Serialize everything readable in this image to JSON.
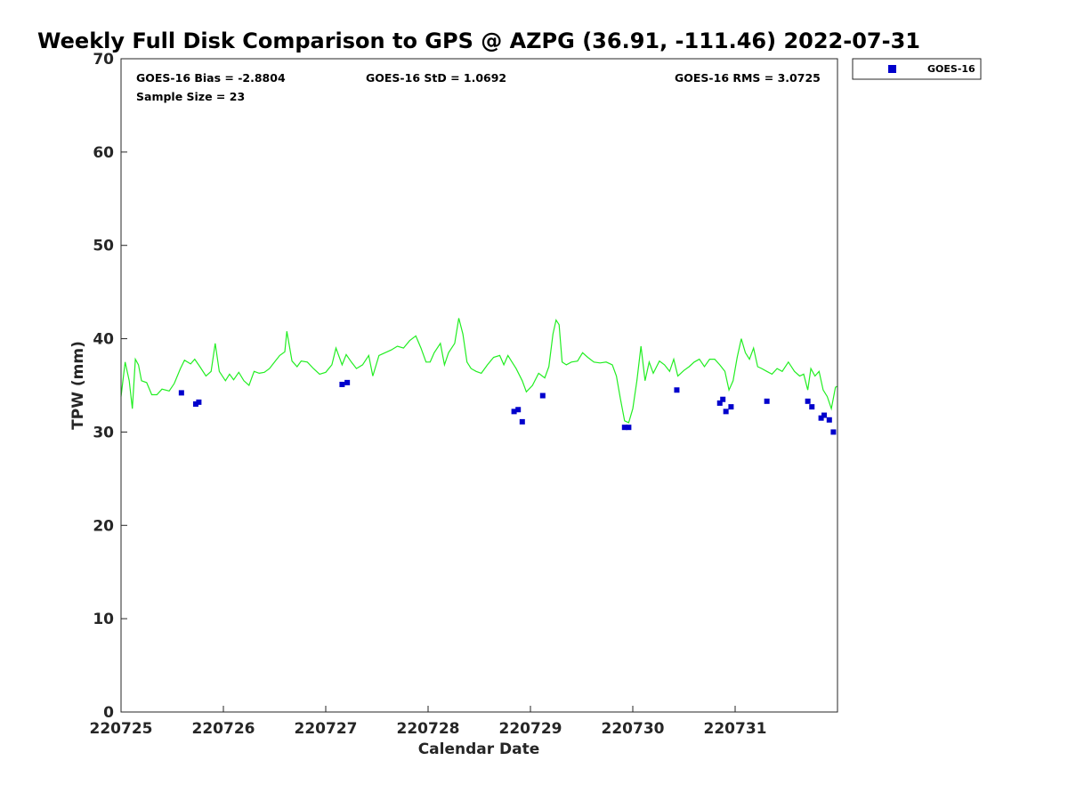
{
  "chart_data": {
    "type": "scatter",
    "title": "Weekly Full Disk Comparison to GPS @ AZPG (36.91, -111.46) 2022-07-31",
    "xlabel": "Calendar Date",
    "ylabel": "TPW (mm)",
    "xlim": [
      0,
      7
    ],
    "ylim": [
      0,
      70
    ],
    "yticks": [
      0,
      10,
      20,
      30,
      40,
      50,
      60,
      70
    ],
    "xticks": [
      {
        "value": 0,
        "label": "220725"
      },
      {
        "value": 1,
        "label": "220726"
      },
      {
        "value": 2,
        "label": "220727"
      },
      {
        "value": 3,
        "label": "220728"
      },
      {
        "value": 4,
        "label": "220729"
      },
      {
        "value": 5,
        "label": "220730"
      },
      {
        "value": 6,
        "label": "220731"
      }
    ],
    "grid": false,
    "legend_position": "outside top-right",
    "stats": {
      "bias": "GOES-16 Bias = -2.8804",
      "std": "GOES-16 StD = 1.0692",
      "rms": "GOES-16 RMS = 3.0725",
      "sample": "Sample Size = 23"
    },
    "series": [
      {
        "name": "GOES-16",
        "kind": "scatter",
        "color": "#0000cc",
        "marker": "square",
        "points": [
          [
            0.59,
            34.2
          ],
          [
            0.73,
            33.0
          ],
          [
            0.76,
            33.2
          ],
          [
            2.16,
            35.1
          ],
          [
            2.21,
            35.3
          ],
          [
            3.84,
            32.2
          ],
          [
            3.88,
            32.4
          ],
          [
            3.92,
            31.1
          ],
          [
            4.12,
            33.9
          ],
          [
            4.92,
            30.5
          ],
          [
            4.96,
            30.5
          ],
          [
            5.43,
            34.5
          ],
          [
            5.85,
            33.1
          ],
          [
            5.88,
            33.5
          ],
          [
            5.91,
            32.2
          ],
          [
            5.96,
            32.7
          ],
          [
            6.31,
            33.3
          ],
          [
            6.71,
            33.3
          ],
          [
            6.75,
            32.7
          ],
          [
            6.84,
            31.5
          ],
          [
            6.87,
            31.8
          ],
          [
            6.92,
            31.3
          ],
          [
            6.96,
            30.0
          ]
        ]
      },
      {
        "kind": "line",
        "color": "#22ee22",
        "points": [
          [
            0.0,
            33.8
          ],
          [
            0.04,
            37.5
          ],
          [
            0.08,
            35.5
          ],
          [
            0.11,
            32.5
          ],
          [
            0.14,
            37.8
          ],
          [
            0.17,
            37.2
          ],
          [
            0.2,
            35.5
          ],
          [
            0.25,
            35.3
          ],
          [
            0.3,
            34.0
          ],
          [
            0.35,
            34.0
          ],
          [
            0.4,
            34.6
          ],
          [
            0.47,
            34.4
          ],
          [
            0.52,
            35.2
          ],
          [
            0.58,
            36.8
          ],
          [
            0.62,
            37.7
          ],
          [
            0.68,
            37.3
          ],
          [
            0.72,
            37.8
          ],
          [
            0.77,
            37.0
          ],
          [
            0.83,
            36.0
          ],
          [
            0.88,
            36.5
          ],
          [
            0.92,
            39.5
          ],
          [
            0.96,
            36.5
          ],
          [
            1.02,
            35.5
          ],
          [
            1.06,
            36.2
          ],
          [
            1.1,
            35.6
          ],
          [
            1.15,
            36.4
          ],
          [
            1.2,
            35.5
          ],
          [
            1.25,
            35.0
          ],
          [
            1.3,
            36.5
          ],
          [
            1.35,
            36.3
          ],
          [
            1.4,
            36.4
          ],
          [
            1.45,
            36.8
          ],
          [
            1.5,
            37.5
          ],
          [
            1.55,
            38.2
          ],
          [
            1.6,
            38.6
          ],
          [
            1.62,
            40.8
          ],
          [
            1.67,
            37.6
          ],
          [
            1.72,
            37.0
          ],
          [
            1.76,
            37.6
          ],
          [
            1.82,
            37.5
          ],
          [
            1.88,
            36.8
          ],
          [
            1.94,
            36.2
          ],
          [
            2.0,
            36.4
          ],
          [
            2.06,
            37.2
          ],
          [
            2.1,
            39.0
          ],
          [
            2.16,
            37.2
          ],
          [
            2.2,
            38.3
          ],
          [
            2.25,
            37.5
          ],
          [
            2.3,
            36.8
          ],
          [
            2.36,
            37.2
          ],
          [
            2.42,
            38.2
          ],
          [
            2.46,
            36.0
          ],
          [
            2.52,
            38.2
          ],
          [
            2.58,
            38.5
          ],
          [
            2.64,
            38.8
          ],
          [
            2.7,
            39.2
          ],
          [
            2.76,
            39.0
          ],
          [
            2.82,
            39.8
          ],
          [
            2.88,
            40.3
          ],
          [
            2.93,
            39.0
          ],
          [
            2.98,
            37.5
          ],
          [
            3.02,
            37.5
          ],
          [
            3.06,
            38.5
          ],
          [
            3.12,
            39.5
          ],
          [
            3.16,
            37.2
          ],
          [
            3.2,
            38.5
          ],
          [
            3.26,
            39.5
          ],
          [
            3.3,
            42.2
          ],
          [
            3.34,
            40.5
          ],
          [
            3.38,
            37.5
          ],
          [
            3.42,
            36.8
          ],
          [
            3.47,
            36.5
          ],
          [
            3.52,
            36.3
          ],
          [
            3.58,
            37.2
          ],
          [
            3.64,
            38.0
          ],
          [
            3.7,
            38.2
          ],
          [
            3.74,
            37.2
          ],
          [
            3.78,
            38.2
          ],
          [
            3.82,
            37.5
          ],
          [
            3.86,
            36.8
          ],
          [
            3.92,
            35.5
          ],
          [
            3.96,
            34.3
          ],
          [
            4.02,
            35.0
          ],
          [
            4.08,
            36.3
          ],
          [
            4.14,
            35.8
          ],
          [
            4.18,
            37.0
          ],
          [
            4.22,
            40.5
          ],
          [
            4.25,
            42.0
          ],
          [
            4.28,
            41.5
          ],
          [
            4.31,
            37.5
          ],
          [
            4.35,
            37.2
          ],
          [
            4.4,
            37.5
          ],
          [
            4.46,
            37.6
          ],
          [
            4.51,
            38.5
          ],
          [
            4.56,
            38.0
          ],
          [
            4.62,
            37.5
          ],
          [
            4.68,
            37.4
          ],
          [
            4.74,
            37.5
          ],
          [
            4.8,
            37.2
          ],
          [
            4.84,
            36.0
          ],
          [
            4.88,
            33.5
          ],
          [
            4.92,
            31.2
          ],
          [
            4.96,
            31.0
          ],
          [
            5.0,
            32.5
          ],
          [
            5.04,
            35.5
          ],
          [
            5.08,
            39.2
          ],
          [
            5.12,
            35.5
          ],
          [
            5.16,
            37.5
          ],
          [
            5.2,
            36.3
          ],
          [
            5.26,
            37.6
          ],
          [
            5.31,
            37.2
          ],
          [
            5.36,
            36.5
          ],
          [
            5.4,
            37.8
          ],
          [
            5.44,
            36.0
          ],
          [
            5.5,
            36.6
          ],
          [
            5.55,
            37.0
          ],
          [
            5.6,
            37.5
          ],
          [
            5.65,
            37.8
          ],
          [
            5.7,
            37.0
          ],
          [
            5.75,
            37.8
          ],
          [
            5.8,
            37.8
          ],
          [
            5.85,
            37.2
          ],
          [
            5.9,
            36.5
          ],
          [
            5.94,
            34.5
          ],
          [
            5.98,
            35.5
          ],
          [
            6.02,
            38.0
          ],
          [
            6.06,
            40.0
          ],
          [
            6.1,
            38.5
          ],
          [
            6.14,
            37.8
          ],
          [
            6.18,
            39.0
          ],
          [
            6.22,
            37.0
          ],
          [
            6.26,
            36.8
          ],
          [
            6.31,
            36.5
          ],
          [
            6.36,
            36.2
          ],
          [
            6.41,
            36.8
          ],
          [
            6.46,
            36.5
          ],
          [
            6.52,
            37.5
          ],
          [
            6.58,
            36.5
          ],
          [
            6.63,
            36.0
          ],
          [
            6.67,
            36.2
          ],
          [
            6.71,
            34.5
          ],
          [
            6.74,
            36.8
          ],
          [
            6.78,
            36.0
          ],
          [
            6.82,
            36.5
          ],
          [
            6.86,
            34.5
          ],
          [
            6.9,
            33.8
          ],
          [
            6.94,
            32.5
          ],
          [
            6.98,
            34.8
          ],
          [
            7.0,
            34.9
          ]
        ]
      }
    ]
  }
}
